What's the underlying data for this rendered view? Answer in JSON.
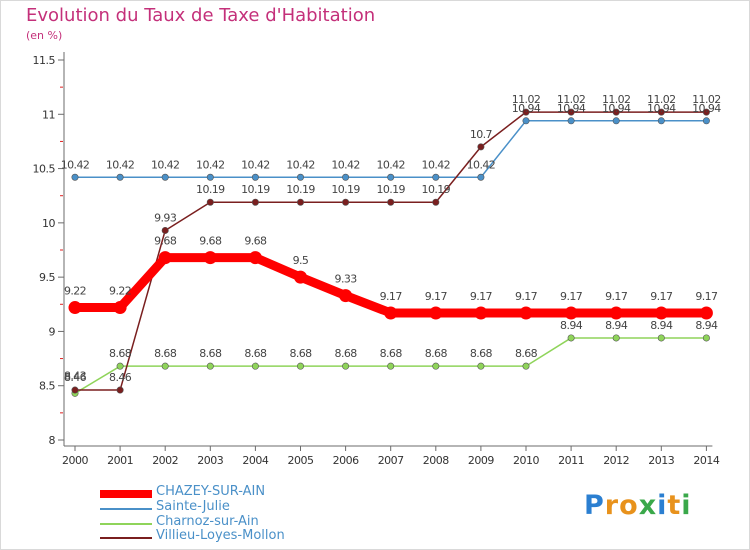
{
  "title": "Evolution du Taux de Taxe d'Habitation",
  "unit_label": "(en %)",
  "logo": {
    "text": "Proxiti",
    "letter_colors": [
      "#2b7fd1",
      "#e8921c",
      "#e8921c",
      "#3aa84a",
      "#2b7fd1",
      "#e8921c",
      "#3aa84a"
    ]
  },
  "chart_data": {
    "type": "line",
    "title": "Evolution du Taux de Taxe d'Habitation",
    "ylabel": "(en %)",
    "xlabel": "",
    "x": [
      "2000",
      "2001",
      "2002",
      "2003",
      "2004",
      "2005",
      "2006",
      "2007",
      "2008",
      "2009",
      "2010",
      "2011",
      "2012",
      "2013",
      "2014"
    ],
    "ylim": [
      8,
      11.5
    ],
    "yticks": [
      "8",
      "8.5",
      "9",
      "9.5",
      "10",
      "10.5",
      "11",
      "11.5"
    ],
    "ytick_values": [
      8,
      8.5,
      9,
      9.5,
      10,
      10.5,
      11,
      11.5
    ],
    "series": [
      {
        "name": "CHAZEY-SUR-AIN",
        "color": "#ff0000",
        "emphasis": true,
        "values": [
          9.22,
          9.22,
          9.68,
          9.68,
          9.68,
          9.5,
          9.33,
          9.17,
          9.17,
          9.17,
          9.17,
          9.17,
          9.17,
          9.17,
          9.17
        ],
        "labels": [
          "9.22",
          "9.22",
          "9.68",
          "9.68",
          "9.68",
          "9.5",
          "9.33",
          "9.17",
          "9.17",
          "9.17",
          "9.17",
          "9.17",
          "9.17",
          "9.17",
          "9.17"
        ]
      },
      {
        "name": "Sainte-Julie",
        "color": "#4a90c8",
        "emphasis": false,
        "values": [
          10.42,
          10.42,
          10.42,
          10.42,
          10.42,
          10.42,
          10.42,
          10.42,
          10.42,
          10.42,
          10.94,
          10.94,
          10.94,
          10.94,
          10.94
        ],
        "labels": [
          "10.42",
          "10.42",
          "10.42",
          "10.42",
          "10.42",
          "10.42",
          "10.42",
          "10.42",
          "10.42",
          "10.42",
          "10.94",
          "10.94",
          "10.94",
          "10.94",
          "10.94"
        ]
      },
      {
        "name": "Charnoz-sur-Ain",
        "color": "#8fd45a",
        "emphasis": false,
        "values": [
          8.43,
          8.68,
          8.68,
          8.68,
          8.68,
          8.68,
          8.68,
          8.68,
          8.68,
          8.68,
          8.68,
          8.94,
          8.94,
          8.94,
          8.94
        ],
        "labels": [
          "8.43",
          "8.68",
          "8.68",
          "8.68",
          "8.68",
          "8.68",
          "8.68",
          "8.68",
          "8.68",
          "8.68",
          "8.68",
          "8.94",
          "8.94",
          "8.94",
          "8.94"
        ]
      },
      {
        "name": "Villieu-Loyes-Mollon",
        "color": "#7a1f1f",
        "emphasis": false,
        "values": [
          8.46,
          8.46,
          9.93,
          10.19,
          10.19,
          10.19,
          10.19,
          10.19,
          10.19,
          10.7,
          11.02,
          11.02,
          11.02,
          11.02,
          11.02
        ],
        "labels": [
          "8.46",
          "8.46",
          "9.93",
          "10.19",
          "10.19",
          "10.19",
          "10.19",
          "10.19",
          "10.19",
          "10.7",
          "11.02",
          "11.02",
          "11.02",
          "11.02",
          "11.02"
        ]
      }
    ],
    "legend_position": "bottom-left",
    "grid": false
  }
}
